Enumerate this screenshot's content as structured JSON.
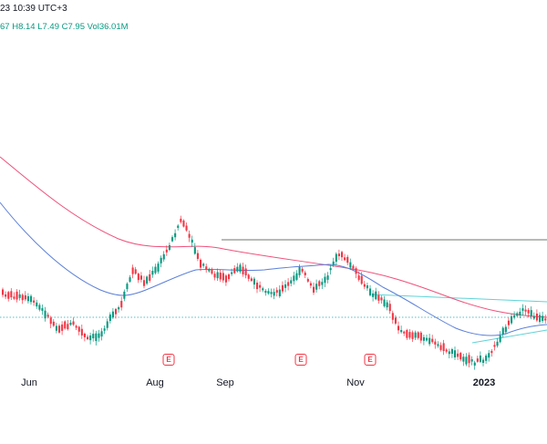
{
  "header": {
    "timestamp": "23 10:39 UTC+3"
  },
  "ohlc": {
    "open": "67",
    "high": "H8.14",
    "low": "L7.49",
    "close": "C7.95",
    "volume": "Vol36.01M"
  },
  "x_axis": {
    "labels": [
      "Jun",
      "Aug",
      "Sep",
      "Nov",
      "2023"
    ]
  },
  "earnings": [
    {
      "label": "E"
    },
    {
      "label": "E"
    },
    {
      "label": "E"
    }
  ],
  "colors": {
    "up": "#089981",
    "down": "#f23645",
    "ma_fast": "#5b7fd9",
    "ma_slow": "#f0507a",
    "trendline": "#5fd3d8",
    "resistance": "#6c7a6c",
    "dotted": "#22a8b0"
  }
}
